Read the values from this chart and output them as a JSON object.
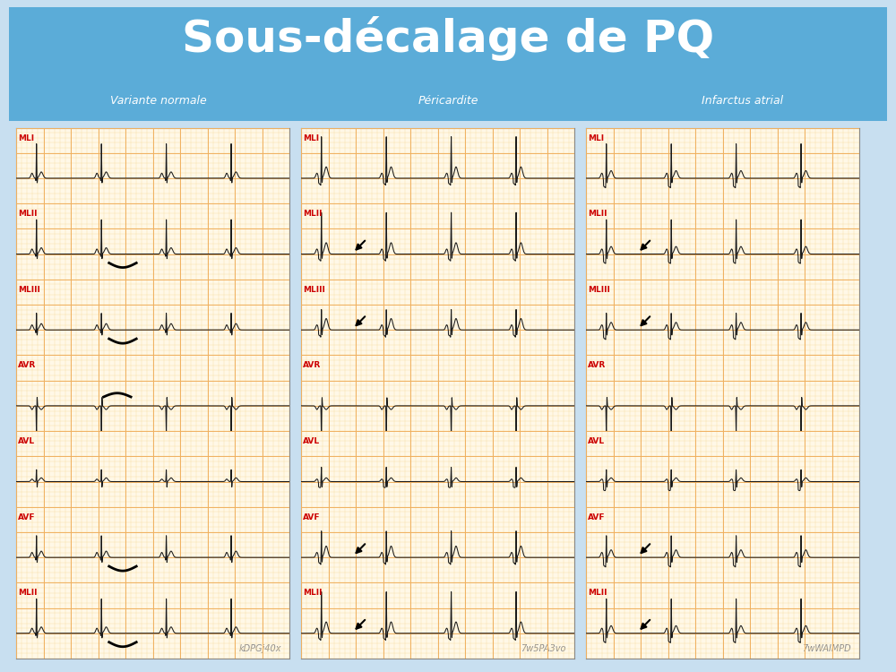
{
  "title": "Sous-décalage de PQ",
  "subtitle_left": "Variante normale",
  "subtitle_center": "Péricardite",
  "subtitle_right": "Infarctus atrial",
  "header_bg": "#5BACD8",
  "header_text_color": "#FFFFFF",
  "ecg_bg": "#FFF8E7",
  "ecg_grid_major": "#F0B060",
  "ecg_grid_minor": "#F8DCA0",
  "ecg_line_color": "#1a1a1a",
  "label_color": "#CC0000",
  "watermark_left": "kDPGj40x",
  "watermark_center": "7w5PA3vo",
  "watermark_right": "7wWAIMPD",
  "panel_labels": [
    "MLI",
    "MLII",
    "MLIII",
    "AVR",
    "AVL",
    "AVF",
    "MLII"
  ],
  "background_color": "#C8DFF0",
  "panel_border_color": "#888888"
}
